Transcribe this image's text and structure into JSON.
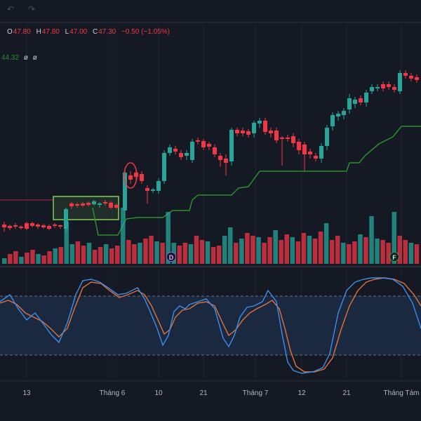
{
  "header": {
    "ohlc": [
      {
        "key": "O",
        "value": "47.80"
      },
      {
        "key": "H",
        "value": "47.80"
      },
      {
        "key": "L",
        "value": "47.00"
      },
      {
        "key": "C",
        "value": "47.30"
      }
    ],
    "change": "−0.50 (−1.05%)"
  },
  "indicator": {
    "value": "44.32",
    "nulls": [
      "ø",
      "ø"
    ]
  },
  "time_axis": [
    {
      "label": "13"
    },
    {
      "label": "Tháng 6"
    },
    {
      "label": "10"
    },
    {
      "label": "21"
    },
    {
      "label": "Tháng 7"
    },
    {
      "label": "12"
    },
    {
      "label": "21"
    },
    {
      "label": "Tháng Tám"
    }
  ],
  "markers": {
    "dividend": "D",
    "financial": "F"
  },
  "colors": {
    "up": "#26a69a",
    "down": "#f23645",
    "trail": "#2b8f2b",
    "stoch_k": "#3d8eea",
    "stoch_d": "#e0723a",
    "background": "#151924"
  },
  "icons": [
    "undo-icon",
    "redo-icon"
  ]
}
